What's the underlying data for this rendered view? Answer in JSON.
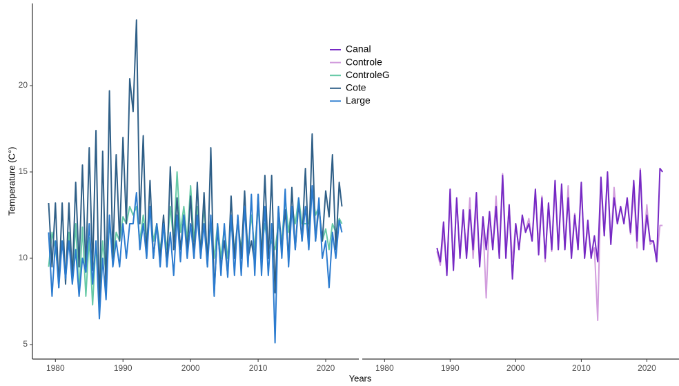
{
  "chart_data": [
    {
      "type": "line",
      "ylabel": "Temperature (C°)",
      "xlabel": "Years",
      "xlim": [
        1976.6,
        2024.9
      ],
      "ylim": [
        4.16,
        24.76
      ],
      "xticks": [
        1980,
        1990,
        2000,
        2010,
        2020
      ],
      "yticks": [
        5,
        10,
        15,
        20
      ],
      "x": [
        1979,
        1979.5,
        1980,
        1980.5,
        1981,
        1981.5,
        1982,
        1982.5,
        1983,
        1983.5,
        1984,
        1984.5,
        1985,
        1985.5,
        1986,
        1986.5,
        1987,
        1987.5,
        1988,
        1988.5,
        1989,
        1989.5,
        1990,
        1990.5,
        1991,
        1991.5,
        1992,
        1992.5,
        1993,
        1993.5,
        1994,
        1994.5,
        1995,
        1995.5,
        1996,
        1996.5,
        1997,
        1997.5,
        1998,
        1998.5,
        1999,
        1999.5,
        2000,
        2000.5,
        2001,
        2001.5,
        2002,
        2002.5,
        2003,
        2003.5,
        2004,
        2004.5,
        2005,
        2005.5,
        2006,
        2006.5,
        2007,
        2007.5,
        2008,
        2008.5,
        2009,
        2009.5,
        2010,
        2010.5,
        2011,
        2011.5,
        2012,
        2012.5,
        2013,
        2013.5,
        2014,
        2014.5,
        2015,
        2015.5,
        2016,
        2016.5,
        2017,
        2017.5,
        2018,
        2018.5,
        2019,
        2019.5,
        2020,
        2020.5,
        2021,
        2021.5,
        2022,
        2022.4
      ],
      "series": [
        {
          "name": "ControleG",
          "color": "#66c9a6",
          "values": [
            9.5,
            11.5,
            10.5,
            9,
            11,
            9,
            11.5,
            8.7,
            12,
            8,
            11.8,
            7.8,
            11.2,
            7.3,
            11,
            8,
            11,
            9,
            12,
            10,
            11.5,
            11,
            12.4,
            12,
            13,
            12.5,
            13,
            11,
            12.5,
            11,
            13,
            11,
            12,
            10.5,
            12,
            10.5,
            13,
            11,
            15,
            11.5,
            13,
            11,
            14.2,
            11,
            13,
            10.5,
            13,
            10,
            12,
            10,
            12,
            10,
            11.8,
            10,
            12,
            10.5,
            12,
            10.5,
            13,
            10.5,
            12.5,
            10.5,
            13,
            10.5,
            12,
            10.5,
            11,
            10.5,
            12,
            11,
            13.5,
            11.5,
            13,
            12,
            13.5,
            12,
            12,
            12,
            14,
            12.5,
            13,
            11,
            11.7,
            10.5,
            12,
            11.5,
            12.3,
            12
          ]
        },
        {
          "name": "Cote",
          "color": "#2f5f87",
          "values": [
            13.2,
            9.5,
            13.2,
            8.3,
            13.2,
            8.5,
            13.2,
            8.8,
            14.4,
            9.5,
            15.4,
            9.3,
            16.4,
            9.3,
            17.4,
            7,
            16.2,
            8,
            19.7,
            10,
            16,
            11,
            17,
            12,
            20.4,
            18.5,
            23.8,
            12,
            17.1,
            10,
            14.5,
            10,
            12,
            10,
            12.5,
            9.5,
            15.3,
            10.5,
            13.5,
            10.5,
            12.5,
            10.5,
            13.6,
            10,
            14.4,
            10,
            13.8,
            9.5,
            16.4,
            8,
            11.7,
            9.5,
            11,
            9,
            13.6,
            10,
            12.4,
            10,
            13.9,
            10,
            11,
            9.7,
            13.7,
            10,
            14.8,
            10,
            14.8,
            8,
            13,
            10.5,
            12.8,
            10,
            14.1,
            10.5,
            13.2,
            11,
            15.2,
            10.5,
            17.2,
            11,
            13,
            11,
            13.9,
            12.4,
            16,
            10.5,
            14.4,
            13
          ]
        },
        {
          "name": "Large",
          "color": "#2b7bcf",
          "values": [
            11.5,
            7.8,
            11,
            8.3,
            11,
            8.8,
            11,
            8.5,
            10.5,
            7.8,
            10,
            9.2,
            12,
            8.5,
            11,
            6.5,
            10,
            7.6,
            12.5,
            9.5,
            11,
            9.5,
            12,
            10,
            12,
            12,
            13.8,
            10.5,
            12,
            10,
            13,
            10,
            12,
            9.5,
            12,
            9.5,
            11.5,
            9,
            12.5,
            9.8,
            12.5,
            10,
            12,
            10,
            12.5,
            10,
            12,
            9.5,
            12.5,
            7.8,
            12,
            9,
            12,
            8.9,
            12.5,
            9,
            12.5,
            9,
            13,
            9.5,
            13.7,
            9,
            13.7,
            9,
            13,
            9,
            12,
            5.1,
            13,
            10,
            14,
            9.5,
            13,
            10.5,
            13.5,
            11,
            13,
            10.5,
            14.2,
            11,
            13.5,
            10,
            11,
            8.3,
            11.5,
            10,
            12.2,
            11.5
          ]
        }
      ]
    },
    {
      "type": "line",
      "xlim": [
        1976.6,
        2024.9
      ],
      "ylim": [
        4.16,
        24.76
      ],
      "xticks": [
        1980,
        1990,
        2000,
        2010,
        2020
      ],
      "x": [
        1988,
        1988.5,
        1989,
        1989.5,
        1990,
        1990.5,
        1991,
        1991.5,
        1992,
        1992.5,
        1993,
        1993.5,
        1994,
        1994.5,
        1995,
        1995.5,
        1996,
        1996.5,
        1997,
        1997.5,
        1998,
        1998.5,
        1999,
        1999.5,
        2000,
        2000.5,
        2001,
        2001.5,
        2002,
        2002.5,
        2003,
        2003.5,
        2004,
        2004.5,
        2005,
        2005.5,
        2006,
        2006.5,
        2007,
        2007.5,
        2008,
        2008.5,
        2009,
        2009.5,
        2010,
        2010.5,
        2011,
        2011.5,
        2012,
        2012.5,
        2013,
        2013.5,
        2014,
        2014.5,
        2015,
        2015.5,
        2016,
        2016.5,
        2017,
        2017.5,
        2018,
        2018.5,
        2019,
        2019.5,
        2020,
        2020.5,
        2021,
        2021.5,
        2022,
        2022.4
      ],
      "series": [
        {
          "name": "Controle",
          "color": "#d29ddd",
          "values": [
            10.4,
            9.6,
            11.5,
            9.3,
            13.5,
            9.5,
            13.4,
            10.2,
            12.5,
            10.4,
            13.5,
            10,
            13,
            9.8,
            12,
            7.7,
            12.6,
            10.6,
            13.6,
            10.3,
            14.9,
            10.4,
            13,
            9.8,
            12,
            10.5,
            12.3,
            11.6,
            12.3,
            11,
            13.8,
            10.8,
            13.6,
            9.8,
            13.2,
            10.4,
            14.2,
            10.5,
            14,
            10.5,
            14.2,
            10.2,
            12.6,
            10.6,
            14.1,
            10.1,
            11.8,
            10.2,
            10.6,
            6.4,
            14.4,
            11.3,
            14.7,
            10.9,
            14.1,
            12,
            12.9,
            12.1,
            13.4,
            11.4,
            13.9,
            10.6,
            15.2,
            10.7,
            13.1,
            10.8,
            11,
            10,
            11.9,
            11.9
          ]
        },
        {
          "name": "Canal",
          "color": "#7629c4",
          "values": [
            10.6,
            9.8,
            12.1,
            9,
            14,
            9.3,
            13.5,
            10,
            12.8,
            10,
            12.8,
            10.5,
            13.8,
            9.5,
            12.4,
            10.5,
            12.7,
            10.5,
            13,
            10,
            14.8,
            10,
            13.1,
            8.8,
            12,
            10.5,
            12.5,
            11.5,
            12,
            11,
            14,
            10.2,
            13.5,
            10,
            13.2,
            10.5,
            14.5,
            10.5,
            14.3,
            10.5,
            13.5,
            10,
            12.5,
            10.5,
            14.4,
            10,
            12.2,
            10,
            11.3,
            9.8,
            14.7,
            11.3,
            15,
            10.8,
            13.5,
            12,
            13,
            12,
            13.5,
            11.5,
            14.5,
            11,
            15.1,
            10.5,
            12.5,
            11,
            11,
            9.8,
            15.2,
            15
          ]
        }
      ]
    }
  ]
}
